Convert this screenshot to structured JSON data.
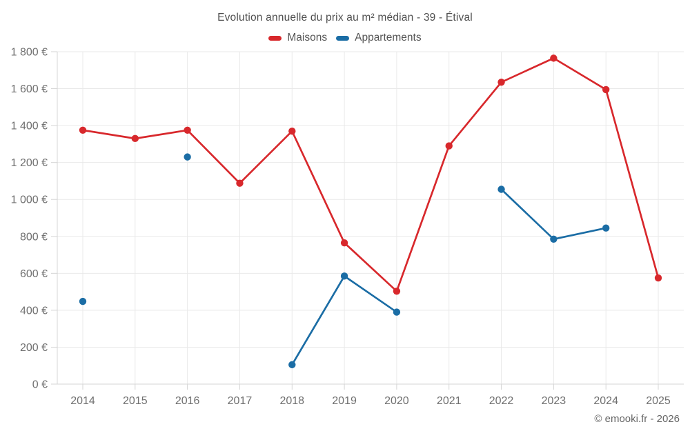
{
  "header": {
    "title": "Evolution annuelle du prix au m² médian - 39 - Étival"
  },
  "legend": {
    "items": [
      {
        "label": "Maisons",
        "color": "#d8282c"
      },
      {
        "label": "Appartements",
        "color": "#1b6da5"
      }
    ]
  },
  "footer": {
    "credit": "© emooki.fr - 2026"
  },
  "chart_data": {
    "type": "line",
    "title": "Evolution annuelle du prix au m² médian - 39 - Étival",
    "xlabel": "",
    "ylabel": "",
    "currency": "€",
    "x": [
      "2014",
      "2015",
      "2016",
      "2017",
      "2018",
      "2019",
      "2020",
      "2021",
      "2022",
      "2023",
      "2024",
      "2025"
    ],
    "series": [
      {
        "name": "Maisons",
        "color": "#d8282c",
        "values": [
          1375,
          1330,
          1375,
          1088,
          1370,
          765,
          503,
          1290,
          1635,
          1765,
          1595,
          575
        ]
      },
      {
        "name": "Appartements",
        "color": "#1b6da5",
        "values": [
          448,
          null,
          1230,
          null,
          105,
          585,
          390,
          null,
          1055,
          785,
          845,
          null
        ]
      }
    ],
    "ylim": [
      0,
      1800
    ],
    "y_ticks": [
      0,
      200,
      400,
      600,
      800,
      1000,
      1200,
      1400,
      1600,
      1800
    ],
    "y_tick_labels": [
      "0 €",
      "200 €",
      "400 €",
      "600 €",
      "800 €",
      "1 000 €",
      "1 200 €",
      "1 400 €",
      "1 600 €",
      "1 800 €"
    ],
    "grid": true,
    "legend_position": "top",
    "styles": {
      "grid_color": "#e9e9e9",
      "axis_color": "#d5d5d5",
      "tick_label_color": "#707070"
    }
  }
}
